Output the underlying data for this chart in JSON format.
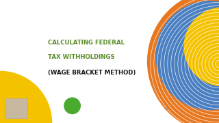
{
  "bg_color": "#ffffff",
  "title_line1": "CALCULATING FEDERAL",
  "title_line2": "TAX WITHHOLDINGS",
  "title_line3": "(WAGE BRACKET METHOD)",
  "title_color_green": "#5b8c28",
  "title_color_black": "#1a1a1a",
  "circle_blue": "#4a7fc1",
  "circle_yellow": "#f5c200",
  "circle_orange": "#e87820",
  "circle_left_color": "#f5c200",
  "circle_small_color": "#4aaa30",
  "concentric_color": "#ffffff",
  "figsize": [
    3.2,
    1.8
  ],
  "dpi": 100
}
